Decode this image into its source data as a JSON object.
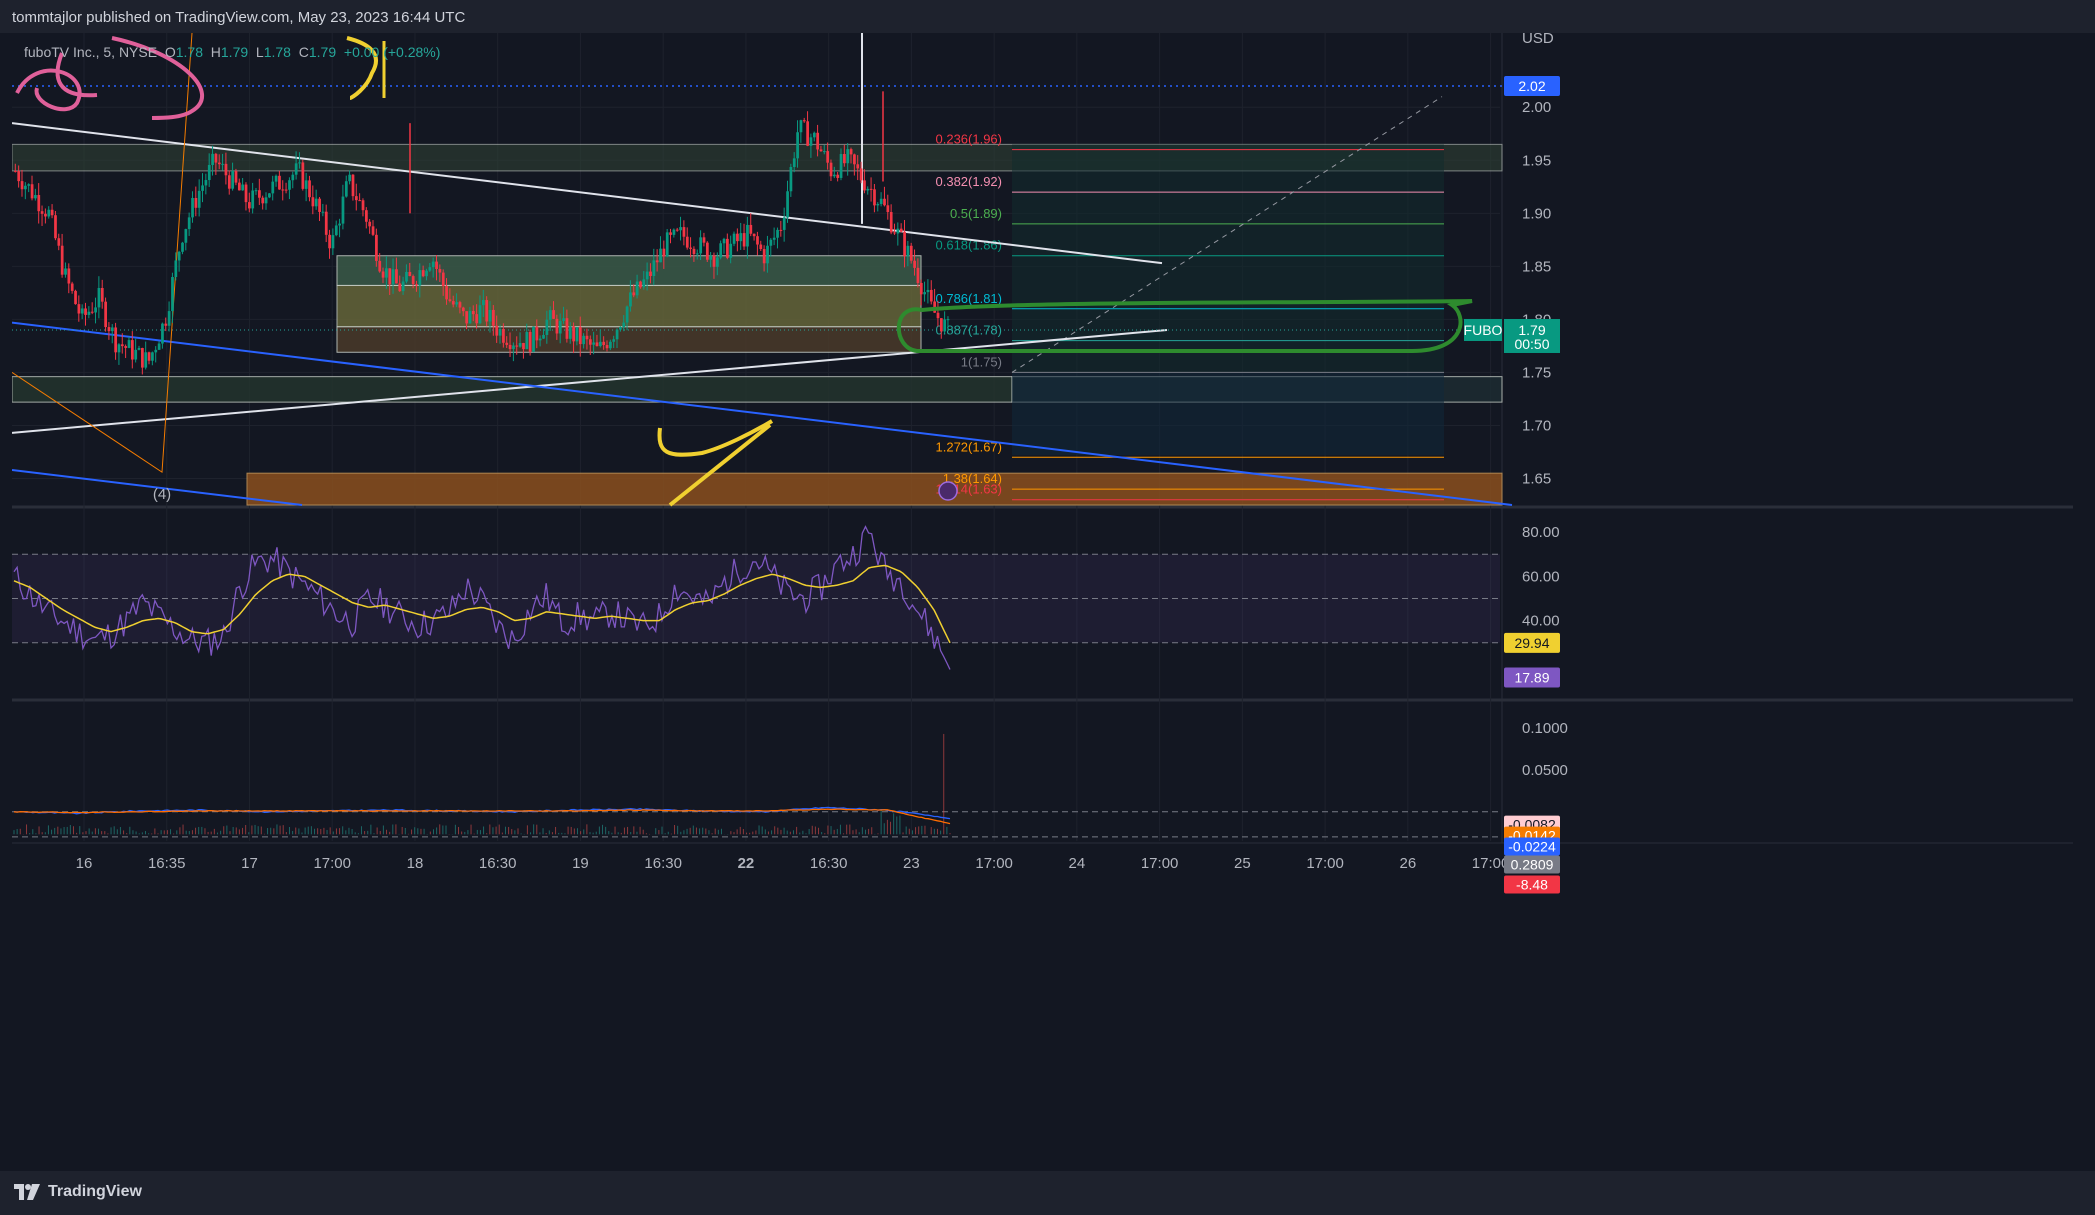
{
  "header": {
    "published": "tommtajlor published on TradingView.com, May 23, 2023 16:44 UTC"
  },
  "legend": {
    "symbol": "fuboTV Inc., 5, NYSE",
    "open_label": "O",
    "open": "1.78",
    "high_label": "H",
    "high": "1.79",
    "low_label": "L",
    "low": "1.78",
    "close_label": "C",
    "close": "1.79",
    "change": "+0.00 (+0.28%)"
  },
  "footer": {
    "brand": "TradingView",
    "logo_icon": "tradingview-logo-icon"
  },
  "chart_data": [
    {
      "type": "candlestick",
      "symbol": "FUBO",
      "currency": "USD",
      "price_ticks": [
        "2.00",
        "1.95",
        "1.90",
        "1.85",
        "1.80",
        "1.75",
        "1.70",
        "1.65"
      ],
      "ylim": [
        1.625,
        2.07
      ],
      "time_ticks": [
        {
          "label": "16",
          "bold": false
        },
        {
          "label": "16:35",
          "bold": false
        },
        {
          "label": "17",
          "bold": false
        },
        {
          "label": "17:00",
          "bold": false
        },
        {
          "label": "18",
          "bold": false
        },
        {
          "label": "16:30",
          "bold": false
        },
        {
          "label": "19",
          "bold": false
        },
        {
          "label": "16:30",
          "bold": false
        },
        {
          "label": "22",
          "bold": true
        },
        {
          "label": "16:30",
          "bold": false
        },
        {
          "label": "23",
          "bold": false
        },
        {
          "label": "17:00",
          "bold": false
        },
        {
          "label": "24",
          "bold": false
        },
        {
          "label": "17:00",
          "bold": false
        },
        {
          "label": "25",
          "bold": false
        },
        {
          "label": "17:00",
          "bold": false
        },
        {
          "label": "26",
          "bold": false
        },
        {
          "label": "17:00",
          "bold": false
        }
      ],
      "price_path": [
        1.94,
        1.92,
        1.9,
        1.84,
        1.8,
        1.82,
        1.78,
        1.77,
        1.76,
        1.8,
        1.88,
        1.92,
        1.95,
        1.93,
        1.91,
        1.92,
        1.93,
        1.94,
        1.91,
        1.87,
        1.93,
        1.9,
        1.85,
        1.83,
        1.84,
        1.86,
        1.82,
        1.8,
        1.81,
        1.79,
        1.78,
        1.78,
        1.8,
        1.79,
        1.78,
        1.77,
        1.79,
        1.82,
        1.84,
        1.87,
        1.88,
        1.87,
        1.86,
        1.87,
        1.88,
        1.86,
        1.89,
        1.98,
        1.97,
        1.94,
        1.95,
        1.93,
        1.91,
        1.88,
        1.85,
        1.81,
        1.79
      ],
      "current_price": {
        "symbol": "FUBO",
        "price": "1.79",
        "countdown": "00:50"
      },
      "level_tag": "2.02",
      "fib_levels": [
        {
          "ratio": "0.236",
          "price": 1.96,
          "label": "0.236(1.96)",
          "color": "#f23645"
        },
        {
          "ratio": "0.382",
          "price": 1.92,
          "label": "0.382(1.92)",
          "color": "#f48fb1"
        },
        {
          "ratio": "0.5",
          "price": 1.89,
          "label": "0.5(1.89)",
          "color": "#4caf50"
        },
        {
          "ratio": "0.618",
          "price": 1.86,
          "label": "0.618(1.86)",
          "color": "#089981"
        },
        {
          "ratio": "0.786",
          "price": 1.81,
          "label": "0.786(1.81)",
          "color": "#00bcd4"
        },
        {
          "ratio": "0.887",
          "price": 1.78,
          "label": "0.887(1.78)",
          "color": "#26a69a"
        },
        {
          "ratio": "1",
          "price": 1.75,
          "label": "1(1.75)",
          "color": "#787b86"
        },
        {
          "ratio": "1.272",
          "price": 1.67,
          "label": "1.272(1.67)",
          "color": "#ff9800"
        },
        {
          "ratio": "1.38",
          "price": 1.64,
          "label": "1.38(1.64)",
          "color": "#ff9800"
        },
        {
          "ratio": "1.414",
          "price": 1.63,
          "label": "1.414(1.63)",
          "color": "#f23645"
        }
      ],
      "wave_label": "(4)"
    },
    {
      "type": "line",
      "name": "RSI",
      "y_ticks": [
        "80.00",
        "60.00",
        "40.00"
      ],
      "ylim": [
        5,
        90
      ],
      "bands": [
        70,
        50,
        30
      ],
      "rsi_path": [
        60,
        52,
        44,
        40,
        35,
        31,
        34,
        40,
        48,
        42,
        36,
        31,
        30,
        33,
        55,
        66,
        68,
        62,
        56,
        50,
        43,
        39,
        50,
        47,
        42,
        38,
        40,
        44,
        55,
        49,
        37,
        31,
        45,
        51,
        39,
        42,
        40,
        44,
        40,
        37,
        42,
        55,
        51,
        47,
        57,
        64,
        68,
        60,
        52,
        50,
        55,
        65,
        70,
        80,
        62,
        58,
        45,
        33,
        17.89
      ],
      "ma_path": [
        58,
        55,
        50,
        45,
        41,
        37,
        35,
        37,
        40,
        41,
        39,
        35,
        34,
        36,
        43,
        52,
        58,
        61,
        60,
        56,
        52,
        48,
        46,
        47,
        45,
        43,
        41,
        42,
        45,
        46,
        44,
        40,
        41,
        44,
        43,
        42,
        41,
        42,
        41,
        40,
        40,
        45,
        48,
        49,
        52,
        56,
        59,
        61,
        59,
        56,
        55,
        56,
        58,
        64,
        65,
        62,
        55,
        45,
        29.94
      ],
      "value_rsi": "17.89",
      "value_ma": "29.94"
    },
    {
      "type": "bar",
      "name": "MACD",
      "y_ticks": [
        "0.1000",
        "0.0500"
      ],
      "ylim": [
        -0.035,
        0.13
      ],
      "values": {
        "macd": "-0.0082",
        "signal": "-0.0142",
        "histogram": "-0.0224",
        "volume_a": "0.2809",
        "volume_b": "-8.48"
      },
      "tag_colors": [
        "#ffcdd2",
        "#f57c00",
        "#2962ff",
        "#787b86",
        "#f23645"
      ]
    }
  ]
}
